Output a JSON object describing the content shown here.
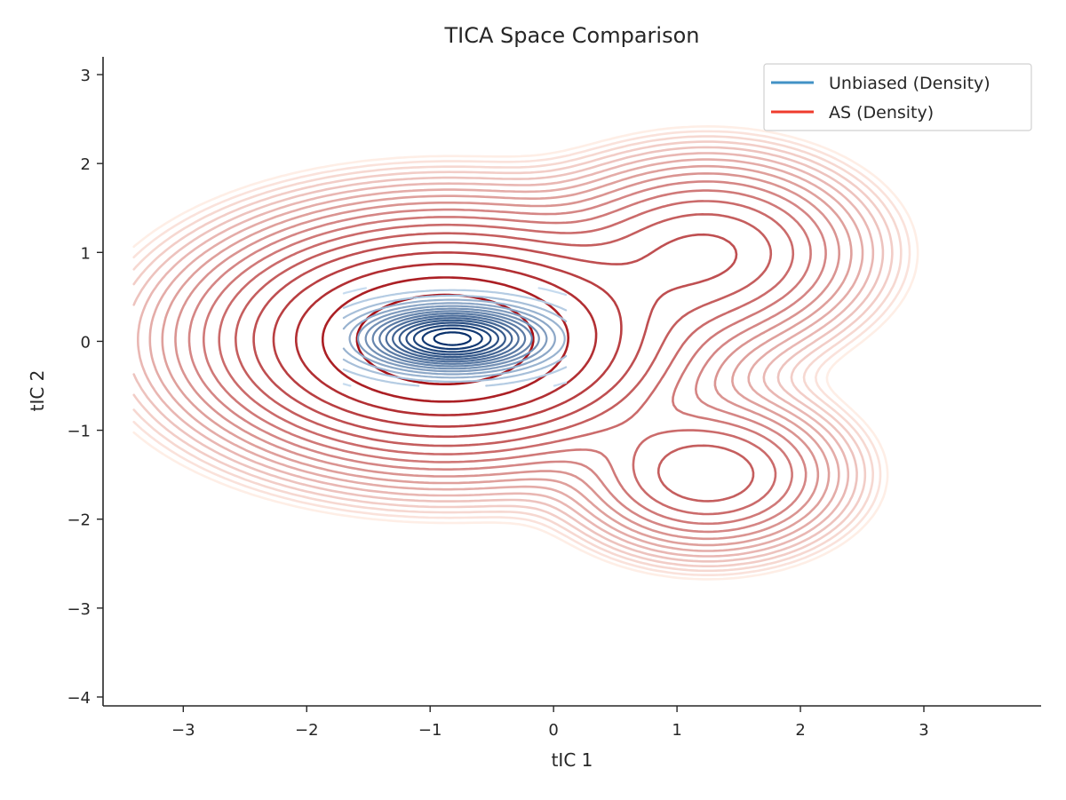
{
  "chart_data": {
    "type": "contour",
    "title": "TICA Space Comparison",
    "xlabel": "tIC 1",
    "ylabel": "tIC 2",
    "xlim": [
      -3.65,
      3.95
    ],
    "ylim": [
      -4.1,
      3.2
    ],
    "xticks": [
      -3,
      -2,
      -1,
      0,
      1,
      2,
      3
    ],
    "yticks": [
      -4,
      -3,
      -2,
      -1,
      0,
      1,
      2,
      3
    ],
    "grid": false,
    "legend_position": "top-right",
    "series": [
      {
        "name": "Unbiased (Density)",
        "color": "#4292c6",
        "colormap": "Blues",
        "kind": "density-contour",
        "peak": [
          -0.82,
          0.03
        ],
        "spread": [
          0.52,
          0.25
        ],
        "levels": 16
      },
      {
        "name": "AS (Density)",
        "color": "#ef3b2c",
        "colormap": "Reds",
        "kind": "density-contour",
        "components": [
          {
            "center": [
              -0.88,
              0.02
            ],
            "spread": [
              0.88,
              0.62
            ],
            "weight": 1.0
          },
          {
            "center": [
              1.25,
              1.0
            ],
            "spread": [
              0.6,
              0.5
            ],
            "weight": 0.22
          },
          {
            "center": [
              1.25,
              -1.5
            ],
            "spread": [
              0.52,
              0.42
            ],
            "weight": 0.2
          }
        ],
        "levels": 18
      }
    ]
  }
}
